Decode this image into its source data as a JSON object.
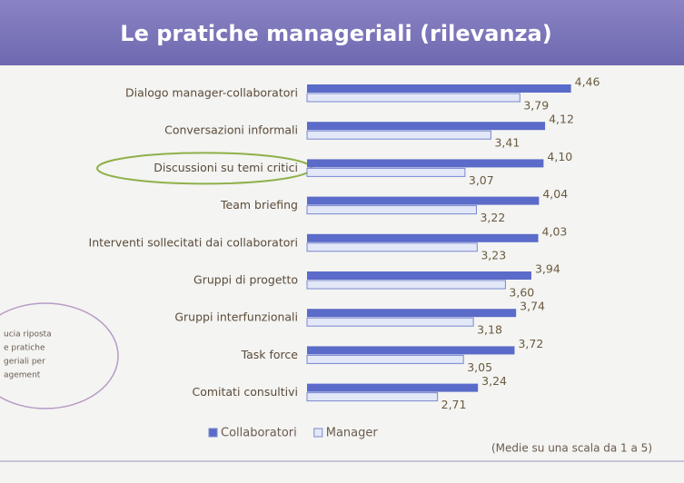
{
  "chart_data": {
    "type": "bar",
    "orientation": "horizontal",
    "title": "Le pratiche manageriali (rilevanza)",
    "categories": [
      "Dialogo manager-collaboratori",
      "Conversazioni informali",
      "Discussioni su temi critici",
      "Team briefing",
      "Interventi sollecitati dai collaboratori",
      "Gruppi di progetto",
      "Gruppi interfunzionali",
      "Task force",
      "Comitati consultivi"
    ],
    "series": [
      {
        "name": "Collaboratori",
        "color": "#5b6bc9",
        "values": [
          4.46,
          4.12,
          4.1,
          4.04,
          4.03,
          3.94,
          3.74,
          3.72,
          3.24
        ],
        "value_labels": [
          "4,46",
          "4,12",
          "4,10",
          "4,04",
          "4,03",
          "3,94",
          "3,74",
          "3,72",
          "3,24"
        ]
      },
      {
        "name": "Manager",
        "color": "#e2e8f8",
        "values": [
          3.79,
          3.41,
          3.07,
          3.22,
          3.23,
          3.6,
          3.18,
          3.05,
          2.71
        ],
        "value_labels": [
          "3,79",
          "3,41",
          "3,07",
          "3,22",
          "3,23",
          "3,60",
          "3,18",
          "3,05",
          "2,71"
        ]
      }
    ],
    "xlim": [
      1,
      5
    ],
    "note": "(Medie su una scala da 1 a 5)",
    "annotations": [
      "ucia riposta",
      "e pratiche",
      "geriali per",
      "agement"
    ],
    "highlight_category": 2
  }
}
